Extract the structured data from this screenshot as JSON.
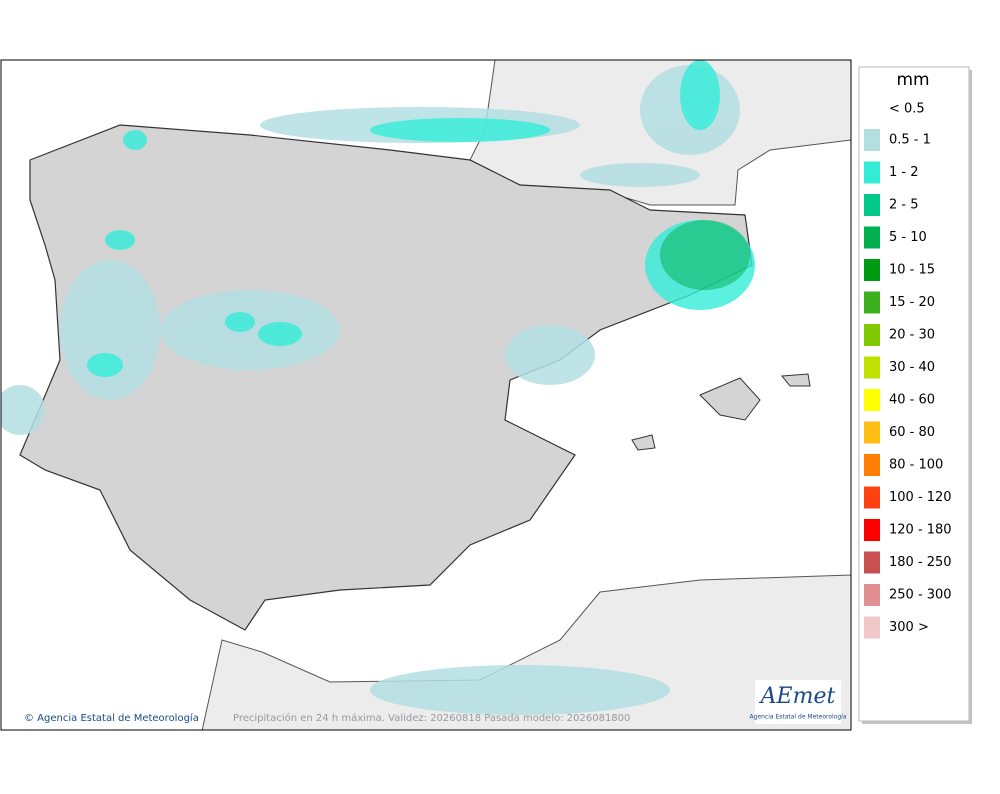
{
  "legend": {
    "title": "mm",
    "items": [
      {
        "label": "< 0.5"
      },
      {
        "label": "0.5 - 1",
        "color": "#b3dfe3"
      },
      {
        "label": "1 - 2",
        "color": "#33ecd8"
      },
      {
        "label": "2 - 5",
        "color": "#00c98a"
      },
      {
        "label": "5 - 10",
        "color": "#00b050"
      },
      {
        "label": "10 - 15",
        "color": "#009a14"
      },
      {
        "label": "15 - 20",
        "color": "#3cb01e"
      },
      {
        "label": "20 - 30",
        "color": "#80c800"
      },
      {
        "label": "30 - 40",
        "color": "#c0e000"
      },
      {
        "label": "40 - 60",
        "color": "#ffff00"
      },
      {
        "label": "60 - 80",
        "color": "#ffbe14"
      },
      {
        "label": "80 - 100",
        "color": "#ff7d00"
      },
      {
        "label": "100 - 120",
        "color": "#ff4010"
      },
      {
        "label": "120 - 180",
        "color": "#ff0000"
      },
      {
        "label": "180 - 250",
        "color": "#c85050"
      },
      {
        "label": "250 - 300",
        "color": "#e09090"
      },
      {
        "label": "300 >",
        "color": "#f0c8c8"
      }
    ]
  },
  "map": {
    "credit": "© Agencia Estatal de Meteorología",
    "caption": "Precipitación en 24 h máxima. Validez: 20260818 Pasada modelo: 2026081800"
  },
  "logo": {
    "name": "AEmet",
    "subtitle": "Agencia Estatal de Meteorología"
  }
}
